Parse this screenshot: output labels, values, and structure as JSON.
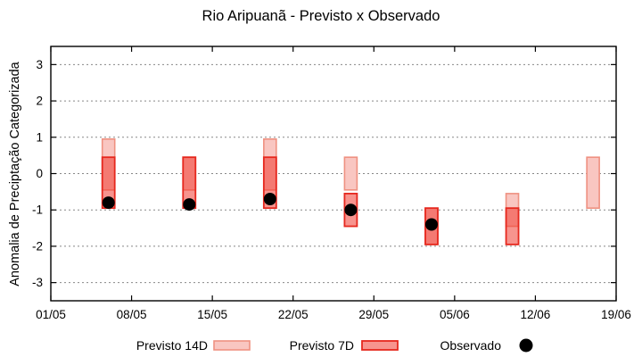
{
  "chart_data": {
    "type": "bar",
    "title": "Rio Aripuanã - Previsto x Observado",
    "ylabel": "Anomalia de Preciptação Categorizada",
    "xlabel": "",
    "ylim": [
      -3.5,
      3.5
    ],
    "yticks": [
      3,
      2,
      1,
      0,
      -1,
      -2,
      -3
    ],
    "xlim_days": [
      0,
      49
    ],
    "xticks": [
      {
        "day": 0,
        "label": "01/05"
      },
      {
        "day": 7,
        "label": "08/05"
      },
      {
        "day": 14,
        "label": "15/05"
      },
      {
        "day": 21,
        "label": "22/05"
      },
      {
        "day": 28,
        "label": "29/05"
      },
      {
        "day": 35,
        "label": "05/06"
      },
      {
        "day": 42,
        "label": "12/06"
      },
      {
        "day": 49,
        "label": "19/06"
      }
    ],
    "grid": "horizontal-dotted",
    "legend_position": "bottom-center",
    "legend": [
      {
        "key": "previsto14",
        "label": "Previsto 14D",
        "swatch": "box-light"
      },
      {
        "key": "previsto7",
        "label": "Previsto 7D",
        "swatch": "box-dark"
      },
      {
        "key": "observado",
        "label": "Observado",
        "swatch": "dot"
      }
    ],
    "points": [
      {
        "date": "06/05",
        "day": 5,
        "previsto14": [
          -0.45,
          0.95
        ],
        "previsto7": [
          -0.95,
          0.45
        ],
        "observado": -0.8
      },
      {
        "date": "13/05",
        "day": 12,
        "previsto14": [
          -0.45,
          0.45
        ],
        "previsto7": [
          -0.95,
          0.45
        ],
        "observado": -0.85
      },
      {
        "date": "20/05",
        "day": 19,
        "previsto14": [
          -0.45,
          0.95
        ],
        "previsto7": [
          -0.95,
          0.45
        ],
        "observado": -0.7
      },
      {
        "date": "27/05",
        "day": 26,
        "previsto14": [
          -0.45,
          0.45
        ],
        "previsto7": [
          -1.45,
          -0.55
        ],
        "observado": -1.0
      },
      {
        "date": "03/06",
        "day": 33,
        "previsto14": [
          -1.95,
          -0.95
        ],
        "previsto7": [
          -1.95,
          -0.95
        ],
        "observado": -1.4
      },
      {
        "date": "10/06",
        "day": 40,
        "previsto14": [
          -1.45,
          -0.55
        ],
        "previsto7": [
          -1.95,
          -0.95
        ],
        "observado": null
      },
      {
        "date": "17/06",
        "day": 47,
        "previsto14": [
          -0.95,
          0.45
        ],
        "previsto7": null,
        "observado": null
      }
    ],
    "colors": {
      "previsto14_fill": "#f9c6c1",
      "previsto14_border": "#ef9181",
      "previsto7_fill": "rgba(240,60,50,0.55)",
      "previsto7_border": "#e6281e",
      "observado": "#000000",
      "grid": "#888888",
      "axis": "#000000"
    }
  }
}
